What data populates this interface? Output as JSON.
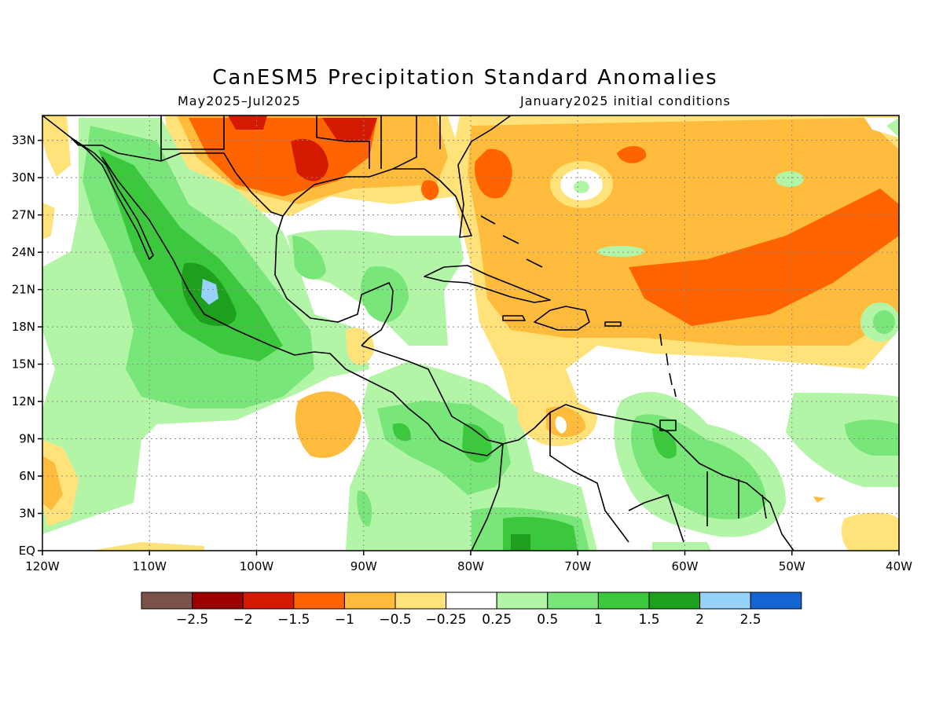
{
  "title": "CanESM5 Precipitation Standard Anomalies",
  "period": "May2025–Jul2025",
  "initial_conditions": "January2025 initial conditions",
  "map": {
    "lon_ticks": [
      "120W",
      "110W",
      "100W",
      "90W",
      "80W",
      "70W",
      "60W",
      "50W",
      "40W"
    ],
    "lat_ticks": [
      "EQ",
      "3N",
      "6N",
      "9N",
      "12N",
      "15N",
      "18N",
      "21N",
      "24N",
      "27N",
      "30N",
      "33N"
    ],
    "lon_range": [
      -120,
      -40
    ],
    "lat_range": [
      0,
      35
    ],
    "grid": "dotted"
  },
  "colorbar": {
    "colors": [
      "#7a524a",
      "#9c0000",
      "#d41a00",
      "#ff6400",
      "#ffbb3c",
      "#ffe37a",
      "#ffffff",
      "#b3f5a6",
      "#78e678",
      "#3cc83c",
      "#1ea01e",
      "#96d2fa",
      "#1464d2"
    ],
    "labels": [
      "−2.5",
      "−2",
      "−1.5",
      "−1",
      "−0.5",
      "−0.25",
      "0.25",
      "0.5",
      "1",
      "1.5",
      "2",
      "2.5"
    ]
  },
  "colors": {
    "dry": "#ff6400",
    "wet": "#3cc83c"
  }
}
